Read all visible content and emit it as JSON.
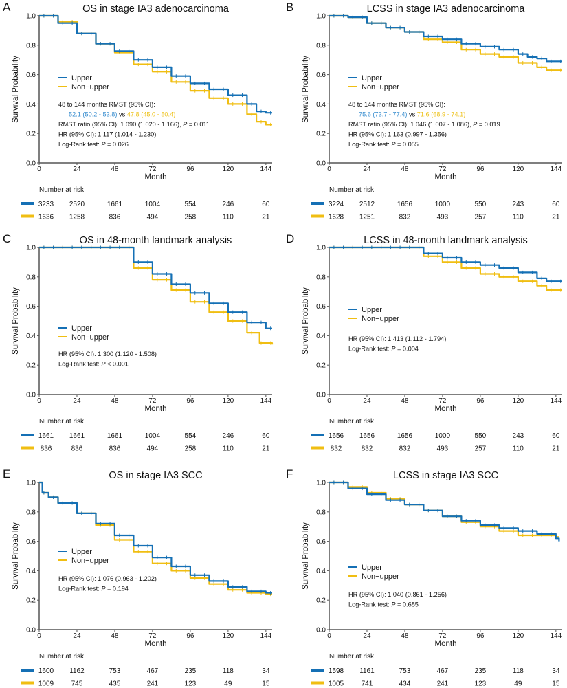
{
  "colors": {
    "upper": "#1570b5",
    "non_upper": "#f0be12",
    "upper_text": "#3b8fd0",
    "non_upper_text": "#eec21c"
  },
  "chart_data": [
    {
      "panel": "A",
      "type": "line",
      "title": "OS in stage IA3 adenocarcinoma",
      "xlabel": "Month",
      "ylabel": "Survival Probability",
      "xlim": [
        0,
        148
      ],
      "ylim": [
        0,
        1
      ],
      "xticks": [
        "0",
        "24",
        "48",
        "72",
        "96",
        "120",
        "144"
      ],
      "yticks": [
        "0.0",
        "0.2",
        "0.4",
        "0.6",
        "0.8",
        "1.0"
      ],
      "legend": [
        "Upper",
        "Non−upper"
      ],
      "series": [
        {
          "name": "Upper",
          "x": [
            0,
            12,
            24,
            36,
            48,
            60,
            72,
            84,
            96,
            108,
            120,
            132,
            138,
            144,
            148
          ],
          "y": [
            1,
            0.95,
            0.88,
            0.81,
            0.76,
            0.7,
            0.65,
            0.59,
            0.54,
            0.5,
            0.46,
            0.4,
            0.35,
            0.34,
            0.34
          ]
        },
        {
          "name": "Non-upper",
          "x": [
            0,
            12,
            24,
            36,
            48,
            60,
            72,
            84,
            96,
            108,
            120,
            132,
            138,
            144,
            148
          ],
          "y": [
            1,
            0.96,
            0.88,
            0.81,
            0.75,
            0.67,
            0.62,
            0.55,
            0.49,
            0.44,
            0.4,
            0.33,
            0.28,
            0.26,
            0.26
          ]
        }
      ],
      "annotations": [
        [
          {
            "t": "48 to 144 months RMST (95% CI):"
          }
        ],
        [
          {
            "t": "52.1 (50.2 - 53.8)",
            "c": "upper"
          },
          {
            "t": " vs "
          },
          {
            "t": "47.8 (45.0 - 50.4)",
            "c": "non_upper"
          }
        ],
        [
          {
            "t": "RMST ratio (95% CI): 1.090 (1.020 - 1.166), "
          },
          {
            "t": "P",
            "i": true
          },
          {
            "t": " = 0.011"
          }
        ],
        [
          {
            "t": "HR (95% CI): 1.117 (1.014 - 1.230)"
          }
        ],
        [
          {
            "t": "Log-Rank test: "
          },
          {
            "t": "P",
            "i": true
          },
          {
            "t": " = 0.026"
          }
        ]
      ],
      "risk_title": "Number at risk",
      "risk": [
        [
          3233,
          2520,
          1661,
          1004,
          554,
          246,
          60
        ],
        [
          1636,
          1258,
          836,
          494,
          258,
          110,
          21
        ]
      ]
    },
    {
      "panel": "B",
      "type": "line",
      "title": "LCSS in stage IA3 adenocarcinoma",
      "xlabel": "Month",
      "ylabel": "Survival Probability",
      "xlim": [
        0,
        148
      ],
      "ylim": [
        0,
        1
      ],
      "xticks": [
        "0",
        "24",
        "48",
        "72",
        "96",
        "120",
        "144"
      ],
      "yticks": [
        "0.0",
        "0.2",
        "0.4",
        "0.6",
        "0.8",
        "1.0"
      ],
      "legend": [
        "Upper",
        "Non−upper"
      ],
      "series": [
        {
          "name": "Upper",
          "x": [
            0,
            12,
            24,
            36,
            48,
            60,
            72,
            84,
            96,
            108,
            120,
            126,
            132,
            138,
            148
          ],
          "y": [
            1,
            0.99,
            0.95,
            0.92,
            0.89,
            0.86,
            0.84,
            0.81,
            0.79,
            0.77,
            0.74,
            0.72,
            0.71,
            0.69,
            0.69
          ]
        },
        {
          "name": "Non-upper",
          "x": [
            0,
            12,
            24,
            36,
            48,
            60,
            72,
            84,
            96,
            108,
            120,
            126,
            132,
            138,
            148
          ],
          "y": [
            1,
            0.99,
            0.95,
            0.92,
            0.89,
            0.84,
            0.82,
            0.77,
            0.74,
            0.72,
            0.68,
            0.68,
            0.65,
            0.63,
            0.63
          ]
        }
      ],
      "annotations": [
        [
          {
            "t": "48 to 144 months RMST (95% CI):"
          }
        ],
        [
          {
            "t": "75.6 (73.7 - 77.4)",
            "c": "upper"
          },
          {
            "t": " vs "
          },
          {
            "t": "71.6 (68.9 - 74.1)",
            "c": "non_upper"
          }
        ],
        [
          {
            "t": "RMST ratio (95% CI): 1.046 (1.007 - 1.086), "
          },
          {
            "t": "P",
            "i": true
          },
          {
            "t": " = 0.019"
          }
        ],
        [
          {
            "t": "HR (95% CI): 1.163 (0.997 - 1.356)"
          }
        ],
        [
          {
            "t": "Log-Rank test: "
          },
          {
            "t": "P",
            "i": true
          },
          {
            "t": " = 0.055"
          }
        ]
      ],
      "risk_title": "Number at risk",
      "risk": [
        [
          3224,
          2512,
          1656,
          1000,
          550,
          243,
          60
        ],
        [
          1628,
          1251,
          832,
          493,
          257,
          110,
          21
        ]
      ]
    },
    {
      "panel": "C",
      "type": "line",
      "title": "OS in 48-month landmark analysis",
      "xlabel": "Month",
      "ylabel": "Survival Probability",
      "xlim": [
        0,
        148
      ],
      "ylim": [
        0,
        1
      ],
      "xticks": [
        "0",
        "24",
        "48",
        "72",
        "96",
        "120",
        "144"
      ],
      "yticks": [
        "0.0",
        "0.2",
        "0.4",
        "0.6",
        "0.8",
        "1.0"
      ],
      "legend": [
        "Upper",
        "Non−upper"
      ],
      "series": [
        {
          "name": "Upper",
          "x": [
            0,
            48,
            60,
            72,
            84,
            96,
            108,
            120,
            132,
            144,
            148
          ],
          "y": [
            1,
            1,
            0.9,
            0.82,
            0.75,
            0.69,
            0.62,
            0.56,
            0.49,
            0.45,
            0.45
          ]
        },
        {
          "name": "Non-upper",
          "x": [
            0,
            48,
            60,
            72,
            84,
            96,
            108,
            120,
            132,
            140,
            148
          ],
          "y": [
            1,
            1,
            0.86,
            0.78,
            0.71,
            0.63,
            0.56,
            0.5,
            0.42,
            0.35,
            0.34
          ]
        }
      ],
      "annotations": [
        [
          {
            "t": "HR (95% CI): 1.300 (1.120 - 1.508)"
          }
        ],
        [
          {
            "t": "Log-Rank test: "
          },
          {
            "t": "P",
            "i": true
          },
          {
            "t": " < 0.001"
          }
        ]
      ],
      "risk_title": "Number at risk",
      "risk": [
        [
          1661,
          1661,
          1661,
          1004,
          554,
          246,
          60
        ],
        [
          836,
          836,
          836,
          494,
          258,
          110,
          21
        ]
      ]
    },
    {
      "panel": "D",
      "type": "line",
      "title": "LCSS in 48-month landmark analysis",
      "xlabel": "Month",
      "ylabel": "Survival Probability",
      "xlim": [
        0,
        148
      ],
      "ylim": [
        0,
        1
      ],
      "xticks": [
        "0",
        "24",
        "48",
        "72",
        "96",
        "120",
        "144"
      ],
      "yticks": [
        "0.0",
        "0.2",
        "0.4",
        "0.6",
        "0.8",
        "1.0"
      ],
      "legend": [
        "Upper",
        "Non−upper"
      ],
      "series": [
        {
          "name": "Upper",
          "x": [
            0,
            48,
            60,
            72,
            84,
            96,
            108,
            120,
            132,
            138,
            148
          ],
          "y": [
            1,
            1,
            0.96,
            0.93,
            0.9,
            0.88,
            0.86,
            0.83,
            0.79,
            0.77,
            0.77
          ]
        },
        {
          "name": "Non-upper",
          "x": [
            0,
            48,
            60,
            72,
            84,
            96,
            108,
            120,
            132,
            138,
            148
          ],
          "y": [
            1,
            1,
            0.94,
            0.9,
            0.86,
            0.82,
            0.8,
            0.77,
            0.74,
            0.71,
            0.71
          ]
        }
      ],
      "annotations": [
        [
          {
            "t": "HR (95% CI): 1.413 (1.112 - 1.794)"
          }
        ],
        [
          {
            "t": "Log-Rank test: "
          },
          {
            "t": "P",
            "i": true
          },
          {
            "t": " = 0.004"
          }
        ]
      ],
      "risk_title": "Number at risk",
      "risk": [
        [
          1656,
          1656,
          1656,
          1000,
          550,
          243,
          60
        ],
        [
          832,
          832,
          832,
          493,
          257,
          110,
          21
        ]
      ]
    },
    {
      "panel": "E",
      "type": "line",
      "title": "OS in stage IA3 SCC",
      "xlabel": "Month",
      "ylabel": "Survival Probability",
      "xlim": [
        0,
        148
      ],
      "ylim": [
        0,
        1
      ],
      "xticks": [
        "0",
        "24",
        "48",
        "72",
        "96",
        "120",
        "144"
      ],
      "yticks": [
        "0.0",
        "0.2",
        "0.4",
        "0.6",
        "0.8",
        "1.0"
      ],
      "legend": [
        "Upper",
        "Non−upper"
      ],
      "series": [
        {
          "name": "Upper",
          "x": [
            0,
            2,
            6,
            12,
            24,
            36,
            48,
            60,
            72,
            84,
            96,
            108,
            120,
            132,
            144,
            148
          ],
          "y": [
            1,
            0.93,
            0.9,
            0.86,
            0.79,
            0.72,
            0.64,
            0.57,
            0.49,
            0.43,
            0.37,
            0.33,
            0.29,
            0.26,
            0.25,
            0.25
          ]
        },
        {
          "name": "Non-upper",
          "x": [
            0,
            2,
            6,
            12,
            24,
            36,
            48,
            60,
            72,
            84,
            96,
            108,
            120,
            132,
            144,
            148
          ],
          "y": [
            1,
            0.93,
            0.9,
            0.86,
            0.79,
            0.71,
            0.61,
            0.53,
            0.45,
            0.4,
            0.35,
            0.31,
            0.27,
            0.25,
            0.24,
            0.24
          ]
        }
      ],
      "annotations": [
        [
          {
            "t": "HR (95% CI): 1.076 (0.963 - 1.202)"
          }
        ],
        [
          {
            "t": "Log-Rank test: "
          },
          {
            "t": "P",
            "i": true
          },
          {
            "t": " = 0.194"
          }
        ]
      ],
      "risk_title": "Number at risk",
      "risk": [
        [
          1600,
          1162,
          753,
          467,
          235,
          118,
          34
        ],
        [
          1009,
          745,
          435,
          241,
          123,
          49,
          15
        ]
      ]
    },
    {
      "panel": "F",
      "type": "line",
      "title": "LCSS in stage IA3 SCC",
      "xlabel": "Month",
      "ylabel": "Survival Probability",
      "xlim": [
        0,
        148
      ],
      "ylim": [
        0,
        1
      ],
      "xticks": [
        "0",
        "24",
        "48",
        "72",
        "96",
        "120",
        "144"
      ],
      "yticks": [
        "0.0",
        "0.2",
        "0.4",
        "0.6",
        "0.8",
        "1.0"
      ],
      "legend": [
        "Upper",
        "Non−upper"
      ],
      "series": [
        {
          "name": "Upper",
          "x": [
            0,
            12,
            24,
            36,
            48,
            60,
            72,
            84,
            96,
            108,
            120,
            132,
            144,
            146
          ],
          "y": [
            1,
            0.96,
            0.92,
            0.88,
            0.85,
            0.81,
            0.77,
            0.74,
            0.71,
            0.69,
            0.67,
            0.65,
            0.62,
            0.6
          ]
        },
        {
          "name": "Non-upper",
          "x": [
            0,
            12,
            24,
            36,
            48,
            60,
            72,
            84,
            96,
            108,
            120,
            132,
            144,
            146
          ],
          "y": [
            1,
            0.97,
            0.93,
            0.89,
            0.85,
            0.81,
            0.77,
            0.73,
            0.7,
            0.67,
            0.64,
            0.64,
            0.63,
            0.63
          ]
        }
      ],
      "annotations": [
        [
          {
            "t": "HR (95% CI): 1.040 (0.861 - 1.256)"
          }
        ],
        [
          {
            "t": "Log-Rank test: "
          },
          {
            "t": "P",
            "i": true
          },
          {
            "t": " = 0.685"
          }
        ]
      ],
      "risk_title": "Number at risk",
      "risk": [
        [
          1598,
          1161,
          753,
          467,
          235,
          118,
          34
        ],
        [
          1005,
          741,
          434,
          241,
          123,
          49,
          15
        ]
      ]
    }
  ]
}
